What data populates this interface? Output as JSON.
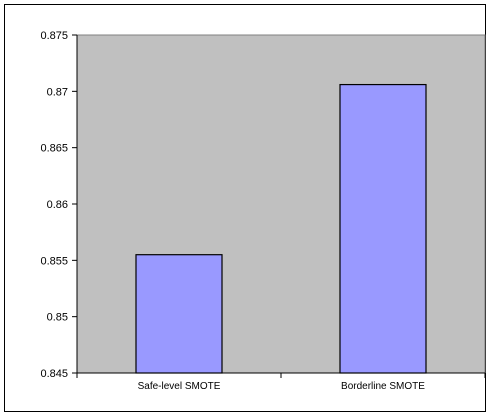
{
  "chart_data": {
    "type": "bar",
    "categories": [
      "Safe-level SMOTE",
      "Borderline SMOTE"
    ],
    "values": [
      0.8555,
      0.8706
    ],
    "title": "",
    "xlabel": "",
    "ylabel": "",
    "ylim": [
      0.845,
      0.875
    ],
    "yticks": [
      "0.845",
      "0.85",
      "0.855",
      "0.86",
      "0.865",
      "0.87",
      "0.875"
    ],
    "grid": false,
    "legend": "none",
    "colors": {
      "plot_background": "#c0c0c0",
      "bar_fill": "#9999ff",
      "bar_stroke": "#000000"
    }
  }
}
